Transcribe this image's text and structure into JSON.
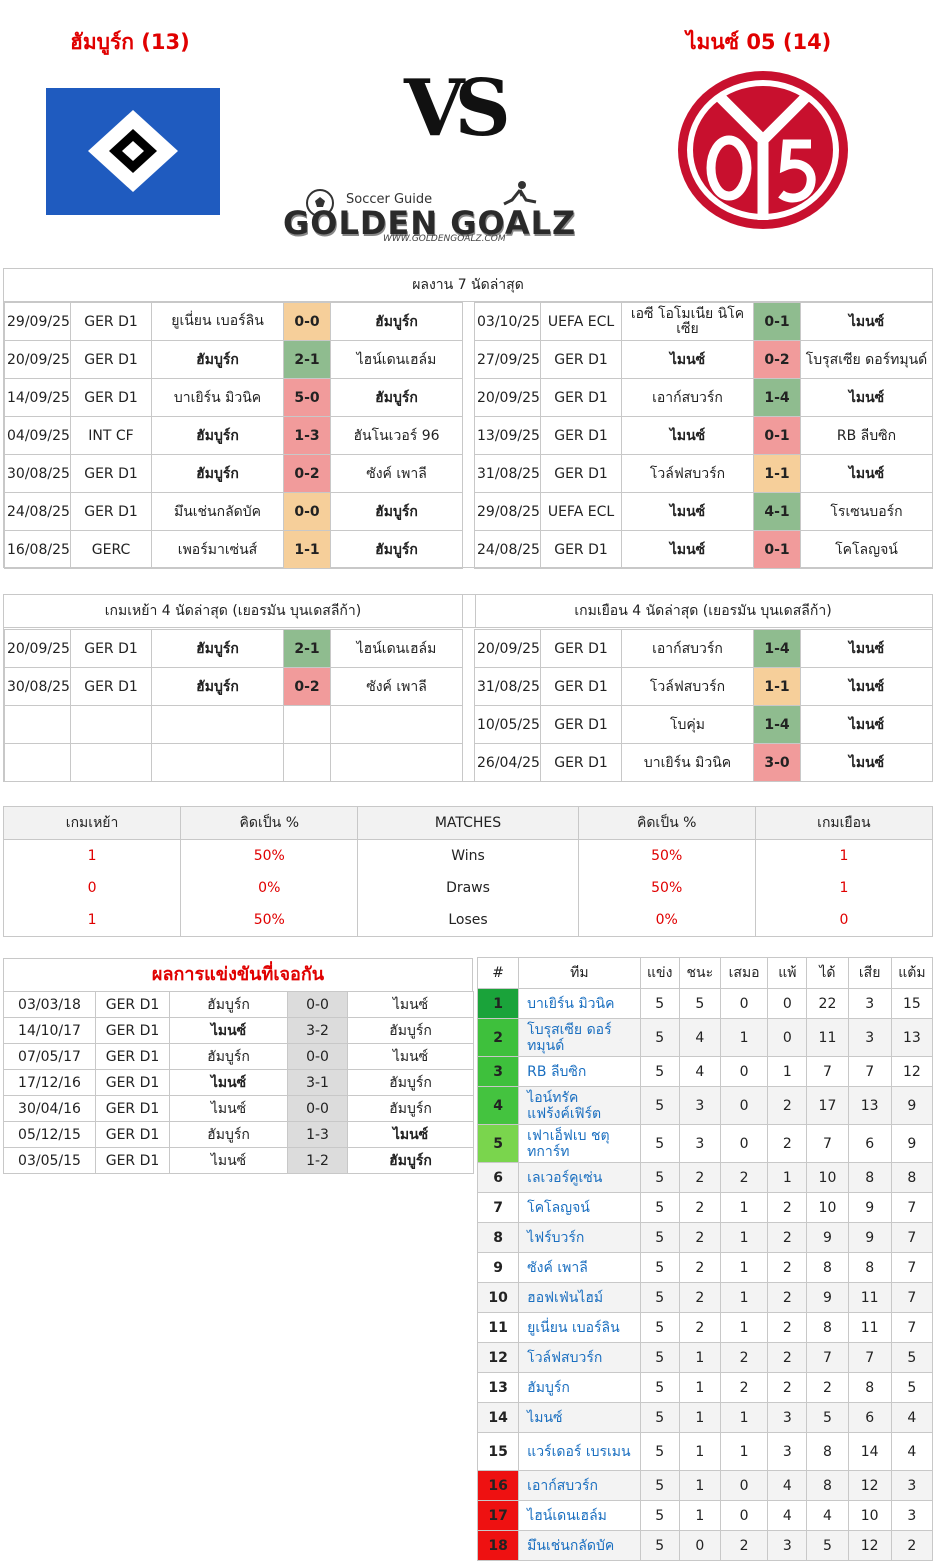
{
  "header": {
    "home_title": "ฮัมบูร์ก (13)",
    "away_title": "ไมนซ์ 05 (14)",
    "vs": "VS",
    "brand_small": "Soccer Guide",
    "brand_big": "GOLDEN GOALZ",
    "brand_url": "WWW.GOLDENGOALZ.COM"
  },
  "colors": {
    "win": "#8fbc8f",
    "draw": "#f6cf9a",
    "loss": "#f19b9b",
    "accent": "#e00000",
    "link": "#1a6fc0"
  },
  "recent": {
    "title": "ผลงาน 7 นัดล่าสุด",
    "home": [
      {
        "date": "29/09/25",
        "comp": "GER D1",
        "home": "ยูเนี่ยน เบอร์ลิน",
        "score": "0-0",
        "away": "ฮัมบูร์ก",
        "res": "d",
        "hb": false,
        "ab": true
      },
      {
        "date": "20/09/25",
        "comp": "GER D1",
        "home": "ฮัมบูร์ก",
        "score": "2-1",
        "away": "ไฮน์เดนเฮล์ม",
        "res": "w",
        "hb": true,
        "ab": false
      },
      {
        "date": "14/09/25",
        "comp": "GER D1",
        "home": "บาเยิร์น มิวนิค",
        "score": "5-0",
        "away": "ฮัมบูร์ก",
        "res": "l",
        "hb": false,
        "ab": true
      },
      {
        "date": "04/09/25",
        "comp": "INT CF",
        "home": "ฮัมบูร์ก",
        "score": "1-3",
        "away": "ฮันโนเวอร์ 96",
        "res": "l",
        "hb": true,
        "ab": false
      },
      {
        "date": "30/08/25",
        "comp": "GER D1",
        "home": "ฮัมบูร์ก",
        "score": "0-2",
        "away": "ซังค์ เพาลี",
        "res": "l",
        "hb": true,
        "ab": false
      },
      {
        "date": "24/08/25",
        "comp": "GER D1",
        "home": "มึนเช่นกลัดบัค",
        "score": "0-0",
        "away": "ฮัมบูร์ก",
        "res": "d",
        "hb": false,
        "ab": true
      },
      {
        "date": "16/08/25",
        "comp": "GERC",
        "home": "เพอร์มาเซ่นส์",
        "score": "1-1",
        "away": "ฮัมบูร์ก",
        "res": "d",
        "hb": false,
        "ab": true
      }
    ],
    "away": [
      {
        "date": "03/10/25",
        "comp": "UEFA ECL",
        "home": "เอซี โอโมเนีย นิโคเซีย",
        "score": "0-1",
        "away": "ไมนซ์",
        "res": "w",
        "hb": false,
        "ab": true
      },
      {
        "date": "27/09/25",
        "comp": "GER D1",
        "home": "ไมนซ์",
        "score": "0-2",
        "away": "โบรุสเซีย ดอร์ทมุนด์",
        "res": "l",
        "hb": true,
        "ab": false
      },
      {
        "date": "20/09/25",
        "comp": "GER D1",
        "home": "เอาก์สบวร์ก",
        "score": "1-4",
        "away": "ไมนซ์",
        "res": "w",
        "hb": false,
        "ab": true
      },
      {
        "date": "13/09/25",
        "comp": "GER D1",
        "home": "ไมนซ์",
        "score": "0-1",
        "away": "RB ลีบซิก",
        "res": "l",
        "hb": true,
        "ab": false
      },
      {
        "date": "31/08/25",
        "comp": "GER D1",
        "home": "โวล์ฟสบวร์ก",
        "score": "1-1",
        "away": "ไมนซ์",
        "res": "d",
        "hb": false,
        "ab": true
      },
      {
        "date": "29/08/25",
        "comp": "UEFA ECL",
        "home": "ไมนซ์",
        "score": "4-1",
        "away": "โรเซนบอร์ก",
        "res": "w",
        "hb": true,
        "ab": false
      },
      {
        "date": "24/08/25",
        "comp": "GER D1",
        "home": "ไมนซ์",
        "score": "0-1",
        "away": "โคโลญจน์",
        "res": "l",
        "hb": true,
        "ab": false
      }
    ]
  },
  "last4": {
    "home_title": "เกมเหย้า 4 นัดล่าสุด (เยอรมัน บุนเดสลีก้า)",
    "away_title": "เกมเยือน 4 นัดล่าสุด (เยอรมัน บุนเดสลีก้า)",
    "home": [
      {
        "date": "20/09/25",
        "comp": "GER D1",
        "home": "ฮัมบูร์ก",
        "score": "2-1",
        "away": "ไฮน์เดนเฮล์ม",
        "res": "w",
        "hb": true,
        "ab": false
      },
      {
        "date": "30/08/25",
        "comp": "GER D1",
        "home": "ฮัมบูร์ก",
        "score": "0-2",
        "away": "ซังค์ เพาลี",
        "res": "l",
        "hb": true,
        "ab": false
      }
    ],
    "away": [
      {
        "date": "20/09/25",
        "comp": "GER D1",
        "home": "เอาก์สบวร์ก",
        "score": "1-4",
        "away": "ไมนซ์",
        "res": "w",
        "hb": false,
        "ab": true
      },
      {
        "date": "31/08/25",
        "comp": "GER D1",
        "home": "โวล์ฟสบวร์ก",
        "score": "1-1",
        "away": "ไมนซ์",
        "res": "d",
        "hb": false,
        "ab": true
      },
      {
        "date": "10/05/25",
        "comp": "GER D1",
        "home": "โบคุ่ม",
        "score": "1-4",
        "away": "ไมนซ์",
        "res": "w",
        "hb": false,
        "ab": true
      },
      {
        "date": "26/04/25",
        "comp": "GER D1",
        "home": "บาเยิร์น มิวนิค",
        "score": "3-0",
        "away": "ไมนซ์",
        "res": "l",
        "hb": false,
        "ab": true
      }
    ]
  },
  "stats": {
    "headers": [
      "เกมเหย้า",
      "คิดเป็น %",
      "MATCHES",
      "คิดเป็น %",
      "เกมเยือน"
    ],
    "rows": [
      {
        "home": "1",
        "home_pct": "50%",
        "label": "Wins",
        "away_pct": "50%",
        "away": "1"
      },
      {
        "home": "0",
        "home_pct": "0%",
        "label": "Draws",
        "away_pct": "50%",
        "away": "1"
      },
      {
        "home": "1",
        "home_pct": "50%",
        "label": "Loses",
        "away_pct": "0%",
        "away": "0"
      }
    ]
  },
  "h2h": {
    "title": "ผลการแข่งขันที่เจอกัน",
    "rows": [
      {
        "date": "03/03/18",
        "comp": "GER D1",
        "home": "ฮัมบูร์ก",
        "score": "0-0",
        "away": "ไมนซ์",
        "hb": false,
        "ab": false
      },
      {
        "date": "14/10/17",
        "comp": "GER D1",
        "home": "ไมนซ์",
        "score": "3-2",
        "away": "ฮัมบูร์ก",
        "hb": true,
        "ab": false
      },
      {
        "date": "07/05/17",
        "comp": "GER D1",
        "home": "ฮัมบูร์ก",
        "score": "0-0",
        "away": "ไมนซ์",
        "hb": false,
        "ab": false
      },
      {
        "date": "17/12/16",
        "comp": "GER D1",
        "home": "ไมนซ์",
        "score": "3-1",
        "away": "ฮัมบูร์ก",
        "hb": true,
        "ab": false
      },
      {
        "date": "30/04/16",
        "comp": "GER D1",
        "home": "ไมนซ์",
        "score": "0-0",
        "away": "ฮัมบูร์ก",
        "hb": false,
        "ab": false
      },
      {
        "date": "05/12/15",
        "comp": "GER D1",
        "home": "ฮัมบูร์ก",
        "score": "1-3",
        "away": "ไมนซ์",
        "hb": false,
        "ab": true
      },
      {
        "date": "03/05/15",
        "comp": "GER D1",
        "home": "ไมนซ์",
        "score": "1-2",
        "away": "ฮัมบูร์ก",
        "hb": false,
        "ab": true
      }
    ]
  },
  "standings": {
    "headers": [
      "#",
      "ทีม",
      "แข่ง",
      "ชนะ",
      "เสมอ",
      "แพ้",
      "ได้",
      "เสีย",
      "แต้ม"
    ],
    "rows": [
      {
        "pos": "1",
        "team": "บาเยิร์น มิวนิค",
        "p": "5",
        "w": "5",
        "d": "0",
        "l": "0",
        "gf": "22",
        "ga": "3",
        "pts": "15",
        "cls": "g1"
      },
      {
        "pos": "2",
        "team": "โบรุสเซีย ดอร์ทมุนด์",
        "p": "5",
        "w": "4",
        "d": "1",
        "l": "0",
        "gf": "11",
        "ga": "3",
        "pts": "13",
        "cls": "g2"
      },
      {
        "pos": "3",
        "team": "RB ลีบซิก",
        "p": "5",
        "w": "4",
        "d": "0",
        "l": "1",
        "gf": "7",
        "ga": "7",
        "pts": "12",
        "cls": "g3"
      },
      {
        "pos": "4",
        "team": "ไอน์ทรัค แฟร้งค์เฟิร์ต",
        "p": "5",
        "w": "3",
        "d": "0",
        "l": "2",
        "gf": "17",
        "ga": "13",
        "pts": "9",
        "cls": "g4"
      },
      {
        "pos": "5",
        "team": "เฟาเอ็ฟเบ ชตุทการ์ท",
        "p": "5",
        "w": "3",
        "d": "0",
        "l": "2",
        "gf": "7",
        "ga": "6",
        "pts": "9",
        "cls": "g5"
      },
      {
        "pos": "6",
        "team": "เลเวอร์คูเซ่น",
        "p": "5",
        "w": "2",
        "d": "2",
        "l": "1",
        "gf": "10",
        "ga": "8",
        "pts": "8",
        "cls": ""
      },
      {
        "pos": "7",
        "team": "โคโลญจน์",
        "p": "5",
        "w": "2",
        "d": "1",
        "l": "2",
        "gf": "10",
        "ga": "9",
        "pts": "7",
        "cls": ""
      },
      {
        "pos": "8",
        "team": "ไฟร์บวร์ก",
        "p": "5",
        "w": "2",
        "d": "1",
        "l": "2",
        "gf": "9",
        "ga": "9",
        "pts": "7",
        "cls": ""
      },
      {
        "pos": "9",
        "team": "ซังค์ เพาลี",
        "p": "5",
        "w": "2",
        "d": "1",
        "l": "2",
        "gf": "8",
        "ga": "8",
        "pts": "7",
        "cls": ""
      },
      {
        "pos": "10",
        "team": "ฮอฟเฟ่นไฮม์",
        "p": "5",
        "w": "2",
        "d": "1",
        "l": "2",
        "gf": "9",
        "ga": "11",
        "pts": "7",
        "cls": ""
      },
      {
        "pos": "11",
        "team": "ยูเนี่ยน เบอร์ลิน",
        "p": "5",
        "w": "2",
        "d": "1",
        "l": "2",
        "gf": "8",
        "ga": "11",
        "pts": "7",
        "cls": ""
      },
      {
        "pos": "12",
        "team": "โวล์ฟสบวร์ก",
        "p": "5",
        "w": "1",
        "d": "2",
        "l": "2",
        "gf": "7",
        "ga": "7",
        "pts": "5",
        "cls": ""
      },
      {
        "pos": "13",
        "team": "ฮัมบูร์ก",
        "p": "5",
        "w": "1",
        "d": "2",
        "l": "2",
        "gf": "2",
        "ga": "8",
        "pts": "5",
        "cls": ""
      },
      {
        "pos": "14",
        "team": "ไมนซ์",
        "p": "5",
        "w": "1",
        "d": "1",
        "l": "3",
        "gf": "5",
        "ga": "6",
        "pts": "4",
        "cls": ""
      },
      {
        "pos": "15",
        "team": "แวร์เดอร์ เบรเมน",
        "p": "5",
        "w": "1",
        "d": "1",
        "l": "3",
        "gf": "8",
        "ga": "14",
        "pts": "4",
        "cls": ""
      },
      {
        "pos": "16",
        "team": "เอาก์สบวร์ก",
        "p": "5",
        "w": "1",
        "d": "0",
        "l": "4",
        "gf": "8",
        "ga": "12",
        "pts": "3",
        "cls": "r1"
      },
      {
        "pos": "17",
        "team": "ไฮน์เดนเฮล์ม",
        "p": "5",
        "w": "1",
        "d": "0",
        "l": "4",
        "gf": "4",
        "ga": "10",
        "pts": "3",
        "cls": "r1"
      },
      {
        "pos": "18",
        "team": "มึนเช่นกลัดบัค",
        "p": "5",
        "w": "0",
        "d": "2",
        "l": "3",
        "gf": "5",
        "ga": "12",
        "pts": "2",
        "cls": "r1"
      }
    ]
  }
}
